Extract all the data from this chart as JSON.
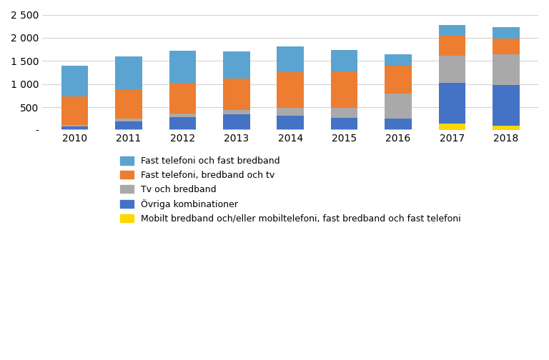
{
  "years": [
    2010,
    2011,
    2012,
    2013,
    2014,
    2015,
    2016,
    2017,
    2018
  ],
  "series": {
    "mobilt": [
      20,
      20,
      20,
      20,
      20,
      20,
      20,
      150,
      100
    ],
    "ovriga": [
      70,
      180,
      270,
      320,
      300,
      250,
      240,
      880,
      880
    ],
    "tv_bredband": [
      30,
      50,
      70,
      100,
      170,
      220,
      530,
      580,
      660
    ],
    "fast_tv": [
      620,
      640,
      660,
      680,
      760,
      790,
      600,
      440,
      340
    ],
    "fast_bb": [
      660,
      710,
      700,
      590,
      570,
      460,
      250,
      230,
      250
    ]
  },
  "colors": {
    "mobilt": "#FFD700",
    "ovriga": "#4472C4",
    "tv_bredband": "#A9A9A9",
    "fast_tv": "#ED7D31",
    "fast_bb": "#5BA3D0"
  },
  "legend_labels": [
    "Fast telefoni och fast bredband",
    "Fast telefoni, bredband och tv",
    "Tv och bredband",
    "Övriga kombinationer",
    "Mobilt bredband och/eller mobiltelefoni, fast bredband och fast telefoni"
  ],
  "ylim": [
    0,
    2500
  ],
  "ytick_labels": [
    "-",
    "500",
    "1 000",
    "1 500",
    "2 000",
    "2 500"
  ],
  "background_color": "#FFFFFF",
  "grid_color": "#D3D3D3"
}
